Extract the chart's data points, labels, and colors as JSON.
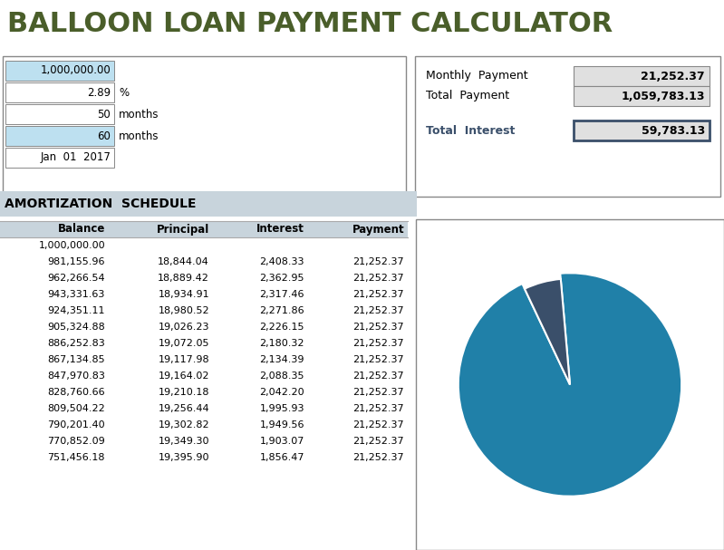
{
  "title": "BALLOON LOAN PAYMENT CALCULATOR",
  "title_color": "#4a5e2a",
  "title_fontsize": 22,
  "input_values": [
    {
      "value": "1,000,000.00",
      "label": "",
      "highlight": true
    },
    {
      "value": "2.89",
      "label": "%",
      "highlight": false
    },
    {
      "value": "50",
      "label": "months",
      "highlight": false
    },
    {
      "value": "60",
      "label": "months",
      "highlight": true
    },
    {
      "value": "Jan  01  2017",
      "label": "",
      "highlight": false
    }
  ],
  "summary_labels": [
    "Monthly  Payment",
    "Total  Payment",
    "Total  Interest"
  ],
  "summary_values": [
    "21,252.37",
    "1,059,783.13",
    "59,783.13"
  ],
  "amort_title": "AMORTIZATION  SCHEDULE",
  "table_headers": [
    "Balance",
    "Principal",
    "Interest",
    "Payment"
  ],
  "table_rows": [
    [
      "1,000,000.00",
      "",
      "",
      ""
    ],
    [
      "981,155.96",
      "18,844.04",
      "2,408.33",
      "21,252.37"
    ],
    [
      "962,266.54",
      "18,889.42",
      "2,362.95",
      "21,252.37"
    ],
    [
      "943,331.63",
      "18,934.91",
      "2,317.46",
      "21,252.37"
    ],
    [
      "924,351.11",
      "18,980.52",
      "2,271.86",
      "21,252.37"
    ],
    [
      "905,324.88",
      "19,026.23",
      "2,226.15",
      "21,252.37"
    ],
    [
      "886,252.83",
      "19,072.05",
      "2,180.32",
      "21,252.37"
    ],
    [
      "867,134.85",
      "19,117.98",
      "2,134.39",
      "21,252.37"
    ],
    [
      "847,970.83",
      "19,164.02",
      "2,088.35",
      "21,252.37"
    ],
    [
      "828,760.66",
      "19,210.18",
      "2,042.20",
      "21,252.37"
    ],
    [
      "809,504.22",
      "19,256.44",
      "1,995.93",
      "21,252.37"
    ],
    [
      "790,201.40",
      "19,302.82",
      "1,949.56",
      "21,252.37"
    ],
    [
      "770,852.09",
      "19,349.30",
      "1,903.07",
      "21,252.37"
    ],
    [
      "751,456.18",
      "19,395.90",
      "1,856.47",
      "21,252.37"
    ]
  ],
  "pie_principal": 1000000.0,
  "pie_interest": 59783.13,
  "pie_color_principal": "#2080a8",
  "pie_color_interest": "#3a4f6a",
  "bg_color": "#ffffff",
  "cell_bg_blue": "#bde0f0",
  "cell_bg_white": "#ffffff",
  "input_box_border": "#888888",
  "summary_box_border": "#888888",
  "summary_box_bg": "#e0e0e0",
  "total_interest_border": "#3a4f6a",
  "total_interest_label_color": "#3a4f6a",
  "amort_header_bg": "#c8d4dc",
  "col_header_bg": "#c8d4dc",
  "pie_box_border": "#888888"
}
